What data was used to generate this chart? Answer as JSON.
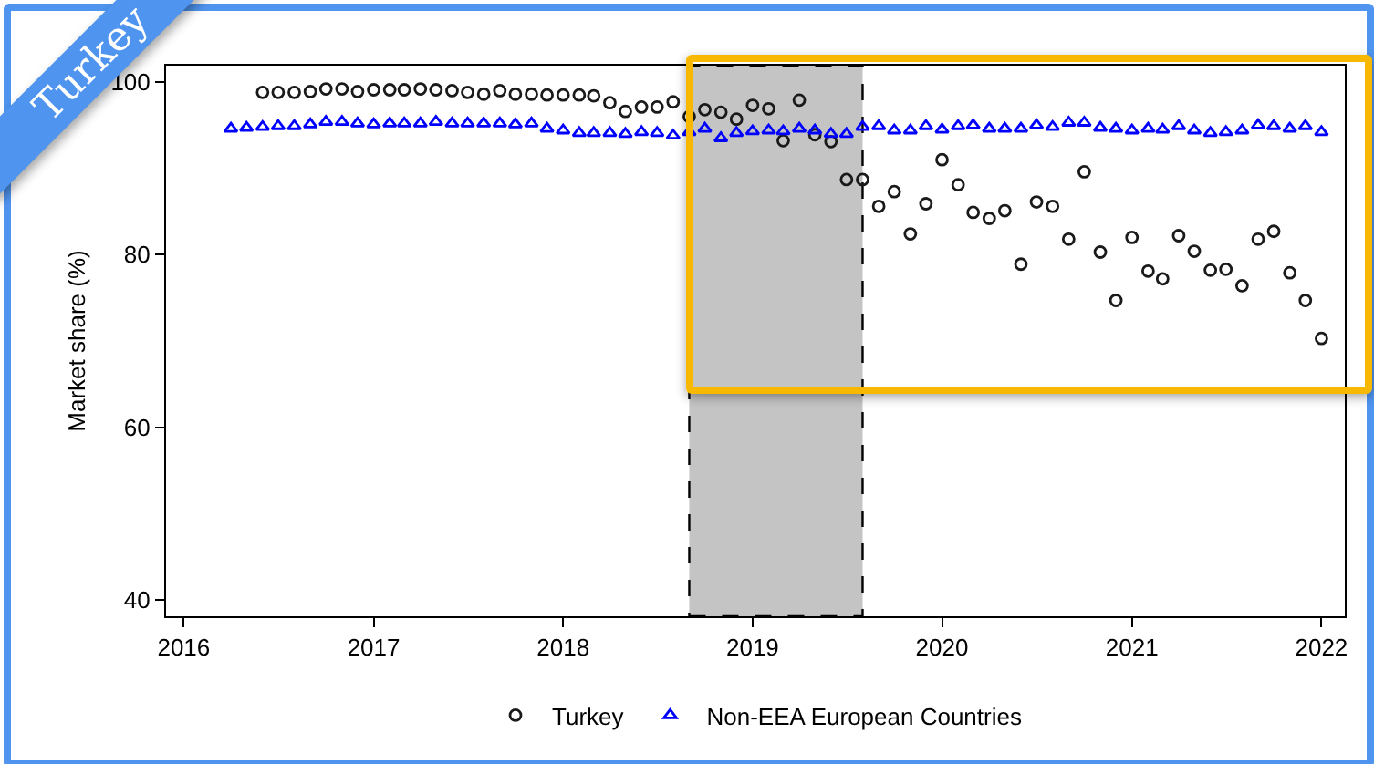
{
  "chart_data": {
    "type": "scatter",
    "ylabel": "Market share (%)",
    "annotations": [
      "Turkey"
    ],
    "x": [
      "2016-04",
      "2016-05",
      "2016-06",
      "2016-07",
      "2016-08",
      "2016-09",
      "2016-10",
      "2016-11",
      "2016-12",
      "2017-01",
      "2017-02",
      "2017-03",
      "2017-04",
      "2017-05",
      "2017-06",
      "2017-07",
      "2017-08",
      "2017-09",
      "2017-10",
      "2017-11",
      "2017-12",
      "2018-01",
      "2018-02",
      "2018-03",
      "2018-04",
      "2018-05",
      "2018-06",
      "2018-07",
      "2018-08",
      "2018-09",
      "2018-10",
      "2018-11",
      "2018-12",
      "2019-01",
      "2019-02",
      "2019-03",
      "2019-04",
      "2019-05",
      "2019-06",
      "2019-07",
      "2019-08",
      "2019-09",
      "2019-10",
      "2019-11",
      "2019-12",
      "2020-01",
      "2020-02",
      "2020-03",
      "2020-04",
      "2020-05",
      "2020-06",
      "2020-07",
      "2020-08",
      "2020-09",
      "2020-10",
      "2020-11",
      "2020-12",
      "2021-01",
      "2021-02",
      "2021-03",
      "2021-04",
      "2021-05",
      "2021-06",
      "2021-07",
      "2021-08",
      "2021-09",
      "2021-10",
      "2021-11",
      "2021-12",
      "2022-01"
    ],
    "series": [
      {
        "name": "Turkey",
        "color": "#1a1a1a",
        "marker": "circle",
        "values": [
          null,
          null,
          98.8,
          98.8,
          98.8,
          98.9,
          99.2,
          99.2,
          98.9,
          99.1,
          99.1,
          99.1,
          99.2,
          99.1,
          99.0,
          98.8,
          98.6,
          99.0,
          98.6,
          98.6,
          98.5,
          98.5,
          98.5,
          98.4,
          97.6,
          96.6,
          97.1,
          97.1,
          97.7,
          96.0,
          96.8,
          96.5,
          95.7,
          97.3,
          96.9,
          93.2,
          97.9,
          93.9,
          93.1,
          88.7,
          88.7,
          85.6,
          87.3,
          82.4,
          85.9,
          91.0,
          88.1,
          84.9,
          84.2,
          85.1,
          78.9,
          86.1,
          85.6,
          81.8,
          89.6,
          80.3,
          74.7,
          82.0,
          78.1,
          77.2,
          82.2,
          80.4,
          78.2,
          78.3,
          76.4,
          81.8,
          82.7,
          77.9,
          74.7,
          70.3
        ]
      },
      {
        "name": "Non-EEA European Countries",
        "color": "#0000ff",
        "marker": "triangle",
        "values": [
          94.6,
          94.7,
          94.8,
          94.9,
          94.9,
          95.1,
          95.4,
          95.4,
          95.2,
          95.1,
          95.2,
          95.2,
          95.2,
          95.4,
          95.2,
          95.2,
          95.2,
          95.2,
          95.1,
          95.2,
          94.6,
          94.4,
          94.1,
          94.1,
          94.1,
          94.0,
          94.2,
          94.1,
          93.8,
          94.2,
          94.6,
          93.5,
          94.1,
          94.3,
          94.4,
          94.3,
          94.6,
          94.4,
          94.0,
          94.0,
          94.8,
          94.9,
          94.4,
          94.4,
          94.9,
          94.5,
          94.9,
          95.0,
          94.6,
          94.6,
          94.6,
          95.0,
          94.8,
          95.3,
          95.3,
          94.7,
          94.6,
          94.4,
          94.6,
          94.5,
          94.9,
          94.4,
          94.1,
          94.2,
          94.4,
          95.0,
          94.9,
          94.6,
          94.9,
          94.2
        ]
      }
    ],
    "xlim": [
      "2015-11-28",
      "2022-02-15"
    ],
    "xticks": [
      {
        "value": "2016-01-01",
        "label": "2016"
      },
      {
        "value": "2017-01-01",
        "label": "2017"
      },
      {
        "value": "2018-01-01",
        "label": "2018"
      },
      {
        "value": "2019-01-01",
        "label": "2019"
      },
      {
        "value": "2020-01-01",
        "label": "2020"
      },
      {
        "value": "2021-01-01",
        "label": "2021"
      },
      {
        "value": "2022-01-01",
        "label": "2022"
      }
    ],
    "ylim": [
      38.1,
      101.9
    ],
    "yticks": [
      40,
      60,
      80,
      100
    ],
    "bands": [
      {
        "axis": "x",
        "from": "2018-09-01",
        "to": "2019-08-01",
        "color": "#c4c4c4"
      }
    ],
    "grid": false,
    "legend": "bottom"
  }
}
